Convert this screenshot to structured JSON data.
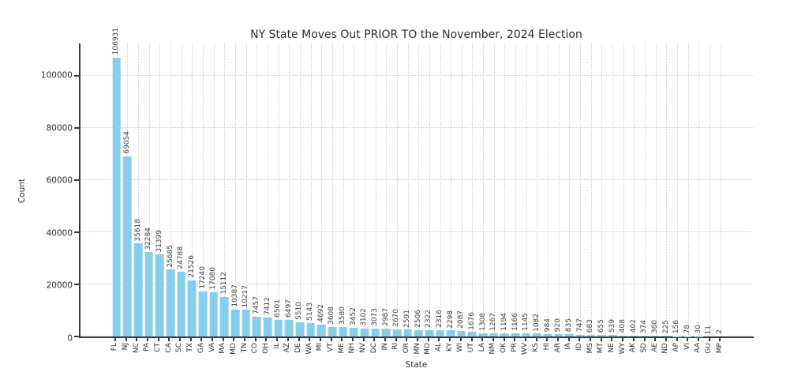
{
  "chart_data": {
    "type": "bar",
    "title": "NY State Moves Out PRIOR TO the November, 2024 Election",
    "xlabel": "State",
    "ylabel": "Count",
    "categories": [
      "FL",
      "NJ",
      "NC",
      "PA",
      "CT",
      "CA",
      "SC",
      "TX",
      "GA",
      "VA",
      "MA",
      "MD",
      "TN",
      "CO",
      "OH",
      "IL",
      "AZ",
      "DE",
      "WA",
      "MI",
      "VT",
      "ME",
      "NH",
      "NV",
      "DC",
      "IN",
      "RI",
      "OR",
      "MN",
      "MO",
      "AL",
      "KY",
      "WI",
      "UT",
      "LA",
      "NM",
      "OK",
      "PR",
      "WV",
      "KS",
      "HI",
      "AR",
      "IA",
      "ID",
      "MS",
      "MT",
      "NE",
      "WY",
      "AK",
      "SD",
      "AE",
      "ND",
      "AP",
      "VI",
      "AA",
      "GU",
      "MP"
    ],
    "values": [
      106931,
      69054,
      35618,
      32284,
      31399,
      25685,
      24788,
      21526,
      17240,
      17080,
      15112,
      10387,
      10217,
      7457,
      7412,
      6501,
      6497,
      5510,
      5143,
      4692,
      3608,
      3580,
      3452,
      3102,
      3073,
      2987,
      2670,
      2591,
      2506,
      2322,
      2316,
      2298,
      2087,
      1676,
      1308,
      1267,
      1194,
      1166,
      1145,
      1082,
      984,
      920,
      835,
      747,
      683,
      655,
      539,
      408,
      402,
      374,
      360,
      225,
      156,
      78,
      30,
      11,
      2
    ],
    "yticks": [
      0,
      20000,
      40000,
      60000,
      80000,
      100000
    ],
    "ylim": [
      0,
      112278
    ],
    "grid": true,
    "legend": false,
    "colors": {
      "bar": "#87CEEB",
      "axis": "#3a3a3a",
      "gridline": "#d0d0d0",
      "text": "#2e2e2e"
    }
  }
}
